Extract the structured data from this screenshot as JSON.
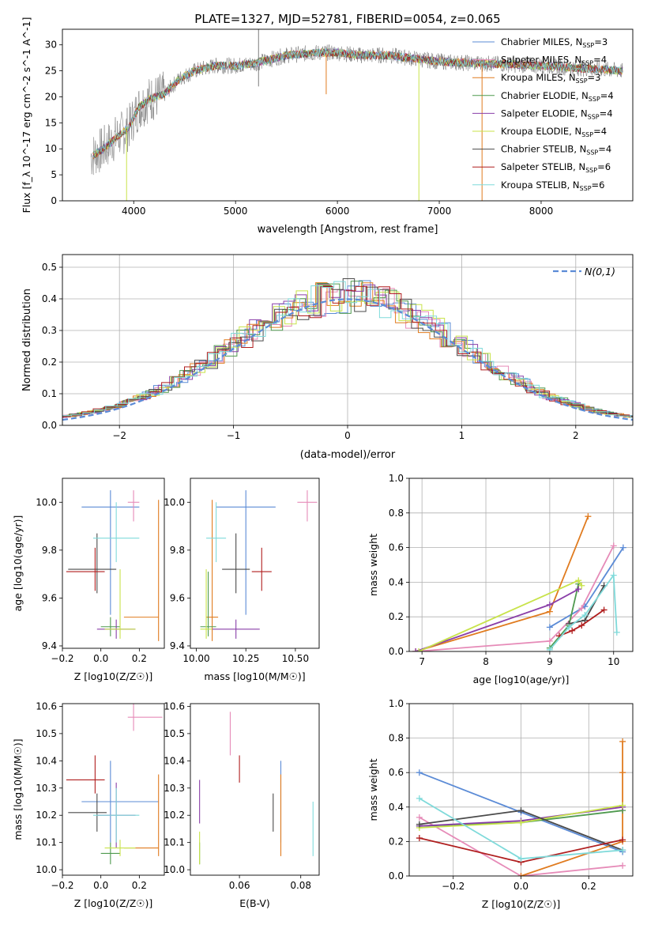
{
  "figure": {
    "title": "PLATE=1327, MJD=52781, FIBERID=0054, z=0.065"
  },
  "colors": {
    "Chabrier MILES": "#5b8bd6",
    "Salpeter MILES": "#e68bb8",
    "Kroupa MILES": "#e07b1f",
    "Chabrier ELODIE": "#4f9a4f",
    "Salpeter ELODIE": "#8a3fa8",
    "Kroupa ELODIE": "#c8e34a",
    "Chabrier STELIB": "#4a4a4a",
    "Salpeter STELIB": "#b01e1e",
    "Kroupa STELIB": "#7fdada",
    "data": "#888888",
    "normal": "#5b8bd6"
  },
  "chart_data": [
    {
      "id": "spectrum",
      "type": "line",
      "xlabel": "wavelength [Angstrom, rest frame]",
      "ylabel": "Flux [f_λ 10^-17 erg cm^-2 s^-1 A^-1]",
      "xlim": [
        3300,
        8900
      ],
      "ylim": [
        0,
        33
      ],
      "xticks": [
        4000,
        5000,
        6000,
        7000,
        8000
      ],
      "yticks": [
        0,
        5,
        10,
        15,
        20,
        25,
        30
      ],
      "continuum_x": [
        3580,
        3700,
        3850,
        3950,
        4050,
        4150,
        4300,
        4450,
        4600,
        4800,
        5000,
        5200,
        5500,
        5800,
        6000,
        6200,
        6500,
        6700,
        7000,
        7300,
        7600,
        8000,
        8400,
        8800
      ],
      "continuum_y": [
        8.5,
        10,
        12.5,
        14,
        18,
        19.5,
        20.5,
        23.5,
        25,
        26,
        26,
        26.5,
        28,
        28.5,
        28.5,
        28,
        28,
        27.5,
        26.8,
        26.5,
        26.3,
        26,
        25.5,
        25
      ],
      "legend": [
        {
          "label": "Chabrier MILES, N",
          "sub": "SSP",
          "tail": "=3"
        },
        {
          "label": "Salpeter MILES, N",
          "sub": "SSP",
          "tail": "=4"
        },
        {
          "label": "Kroupa MILES, N",
          "sub": "SSP",
          "tail": "=3"
        },
        {
          "label": "Chabrier ELODIE, N",
          "sub": "SSP",
          "tail": "=4"
        },
        {
          "label": "Salpeter ELODIE, N",
          "sub": "SSP",
          "tail": "=4"
        },
        {
          "label": "Kroupa ELODIE, N",
          "sub": "SSP",
          "tail": "=4"
        },
        {
          "label": "Chabrier STELIB, N",
          "sub": "SSP",
          "tail": "=4"
        },
        {
          "label": "Salpeter STELIB, N",
          "sub": "SSP",
          "tail": "=6"
        },
        {
          "label": "Kroupa STELIB, N",
          "sub": "SSP",
          "tail": "=6"
        }
      ]
    },
    {
      "id": "residuals",
      "type": "line",
      "xlabel": "(data-model)/error",
      "ylabel": "Normed distribution",
      "xlim": [
        -2.5,
        2.5
      ],
      "ylim": [
        0,
        0.54
      ],
      "xticks": [
        -2,
        -1,
        0,
        1,
        2
      ],
      "yticks": [
        0.0,
        0.1,
        0.2,
        0.3,
        0.4,
        0.5
      ],
      "grid": true,
      "legend": "N(0,1)",
      "hist_step": 0.1
    },
    {
      "id": "age_vs_Z",
      "type": "scatter",
      "xlabel": "Z [log10(Z/Z☉)]",
      "ylabel": "age [log10(age/yr)]",
      "xlim": [
        -0.2,
        0.33
      ],
      "ylim": [
        9.39,
        10.1
      ],
      "xticks": [
        -0.2,
        0.0,
        0.2
      ],
      "yticks": [
        9.4,
        9.6,
        9.8,
        10.0
      ],
      "points": [
        {
          "m": "Chabrier MILES",
          "x": 0.05,
          "xe": [
            0.15,
            0.15
          ],
          "y": 9.98,
          "ye": [
            0.45,
            0.07
          ]
        },
        {
          "m": "Salpeter MILES",
          "x": 0.17,
          "xe": [
            0.03,
            0.03
          ],
          "y": 10.0,
          "ye": [
            0.08,
            0.05
          ]
        },
        {
          "m": "Kroupa MILES",
          "x": 0.3,
          "xe": [
            0.18,
            0.0
          ],
          "y": 9.52,
          "ye": [
            0.1,
            0.49
          ]
        },
        {
          "m": "Chabrier ELODIE",
          "x": 0.05,
          "xe": [
            0.05,
            0.05
          ],
          "y": 9.48,
          "ye": [
            0.04,
            0.04
          ]
        },
        {
          "m": "Salpeter ELODIE",
          "x": 0.08,
          "xe": [
            0.1,
            0.1
          ],
          "y": 9.47,
          "ye": [
            0.04,
            0.04
          ]
        },
        {
          "m": "Kroupa ELODIE",
          "x": 0.1,
          "xe": [
            0.08,
            0.08
          ],
          "y": 9.47,
          "ye": [
            0.04,
            0.25
          ]
        },
        {
          "m": "Chabrier STELIB",
          "x": -0.02,
          "xe": [
            0.15,
            0.1
          ],
          "y": 9.72,
          "ye": [
            0.1,
            0.15
          ]
        },
        {
          "m": "Salpeter STELIB",
          "x": -0.03,
          "xe": [
            0.15,
            0.05
          ],
          "y": 9.71,
          "ye": [
            0.08,
            0.1
          ]
        },
        {
          "m": "Kroupa STELIB",
          "x": 0.08,
          "xe": [
            0.12,
            0.12
          ],
          "y": 9.85,
          "ye": [
            0.1,
            0.15
          ]
        }
      ]
    },
    {
      "id": "age_vs_mass",
      "type": "scatter",
      "xlabel": "mass [log10(M/M☉)]",
      "ylabel": "",
      "xlim": [
        9.97,
        10.62
      ],
      "ylim": [
        9.39,
        10.1
      ],
      "xticks": [
        10.0,
        10.25,
        10.5
      ],
      "yticks": [
        9.4,
        9.6,
        9.8,
        10.0
      ],
      "points": [
        {
          "m": "Chabrier MILES",
          "x": 10.25,
          "xe": [
            0.15,
            0.15
          ],
          "y": 9.98,
          "ye": [
            0.45,
            0.07
          ]
        },
        {
          "m": "Salpeter MILES",
          "x": 10.56,
          "xe": [
            0.05,
            0.05
          ],
          "y": 10.0,
          "ye": [
            0.08,
            0.05
          ]
        },
        {
          "m": "Kroupa MILES",
          "x": 10.08,
          "xe": [
            0.03,
            0.03
          ],
          "y": 9.52,
          "ye": [
            0.1,
            0.49
          ]
        },
        {
          "m": "Chabrier ELODIE",
          "x": 10.06,
          "xe": [
            0.04,
            0.04
          ],
          "y": 9.48,
          "ye": [
            0.04,
            0.23
          ]
        },
        {
          "m": "Salpeter ELODIE",
          "x": 10.2,
          "xe": [
            0.12,
            0.12
          ],
          "y": 9.47,
          "ye": [
            0.04,
            0.04
          ]
        },
        {
          "m": "Kroupa ELODIE",
          "x": 10.05,
          "xe": [
            0.03,
            0.03
          ],
          "y": 9.47,
          "ye": [
            0.04,
            0.25
          ]
        },
        {
          "m": "Chabrier STELIB",
          "x": 10.2,
          "xe": [
            0.07,
            0.07
          ],
          "y": 9.72,
          "ye": [
            0.1,
            0.15
          ]
        },
        {
          "m": "Salpeter STELIB",
          "x": 10.33,
          "xe": [
            0.05,
            0.05
          ],
          "y": 9.71,
          "ye": [
            0.08,
            0.1
          ]
        },
        {
          "m": "Kroupa STELIB",
          "x": 10.1,
          "xe": [
            0.05,
            0.05
          ],
          "y": 9.85,
          "ye": [
            0.1,
            0.15
          ]
        }
      ]
    },
    {
      "id": "mass_weight_vs_age",
      "type": "line",
      "xlabel": "age [log10(age/yr)]",
      "ylabel": "mass weight",
      "xlim": [
        6.8,
        10.3
      ],
      "ylim": [
        0,
        1.0
      ],
      "xticks": [
        7,
        8,
        9,
        10
      ],
      "yticks": [
        0.0,
        0.2,
        0.4,
        0.6,
        0.8,
        1.0
      ],
      "grid": true,
      "series": [
        {
          "m": "Chabrier MILES",
          "x": [
            9.0,
            9.55,
            10.15
          ],
          "y": [
            0.14,
            0.26,
            0.6
          ]
        },
        {
          "m": "Salpeter MILES",
          "x": [
            6.9,
            9.0,
            9.5,
            10.0
          ],
          "y": [
            0.0,
            0.06,
            0.25,
            0.61
          ]
        },
        {
          "m": "Kroupa MILES",
          "x": [
            6.9,
            9.0,
            9.6
          ],
          "y": [
            0.0,
            0.23,
            0.78
          ]
        },
        {
          "m": "Chabrier ELODIE",
          "x": [
            9.0,
            9.3,
            9.45
          ],
          "y": [
            0.02,
            0.15,
            0.39
          ]
        },
        {
          "m": "Salpeter ELODIE",
          "x": [
            6.9,
            9.0,
            9.45
          ],
          "y": [
            0.0,
            0.27,
            0.36
          ]
        },
        {
          "m": "Kroupa ELODIE",
          "x": [
            6.95,
            9.45,
            9.5
          ],
          "y": [
            0.0,
            0.41,
            0.38
          ]
        },
        {
          "m": "Chabrier STELIB",
          "x": [
            9.3,
            9.55,
            9.85
          ],
          "y": [
            0.16,
            0.18,
            0.38
          ]
        },
        {
          "m": "Salpeter STELIB",
          "x": [
            9.15,
            9.35,
            9.5,
            9.85
          ],
          "y": [
            0.09,
            0.12,
            0.15,
            0.24
          ]
        },
        {
          "m": "Kroupa STELIB",
          "x": [
            9.0,
            9.3,
            9.55,
            10.0,
            10.05
          ],
          "y": [
            0.01,
            0.14,
            0.21,
            0.44,
            0.11
          ]
        }
      ]
    },
    {
      "id": "mass_vs_Z",
      "type": "scatter",
      "xlabel": "Z [log10(Z/Z☉)]",
      "ylabel": "mass [log10(M/M☉)]",
      "xlim": [
        -0.2,
        0.33
      ],
      "ylim": [
        9.98,
        10.61
      ],
      "xticks": [
        -0.2,
        0.0,
        0.2
      ],
      "yticks": [
        10.0,
        10.1,
        10.2,
        10.3,
        10.4,
        10.5,
        10.6
      ],
      "points": [
        {
          "m": "Chabrier MILES",
          "x": 0.05,
          "xe": [
            0.15,
            0.25
          ],
          "y": 10.25,
          "ye": [
            0.15,
            0.15
          ]
        },
        {
          "m": "Salpeter MILES",
          "x": 0.17,
          "xe": [
            0.03,
            0.15
          ],
          "y": 10.56,
          "ye": [
            0.05,
            0.05
          ]
        },
        {
          "m": "Kroupa MILES",
          "x": 0.3,
          "xe": [
            0.18,
            0.0
          ],
          "y": 10.08,
          "ye": [
            0.03,
            0.27
          ]
        },
        {
          "m": "Chabrier ELODIE",
          "x": 0.05,
          "xe": [
            0.05,
            0.05
          ],
          "y": 10.06,
          "ye": [
            0.04,
            0.04
          ]
        },
        {
          "m": "Salpeter ELODIE",
          "x": 0.08,
          "xe": [
            0.1,
            0.1
          ],
          "y": 10.2,
          "ye": [
            0.12,
            0.12
          ]
        },
        {
          "m": "Kroupa ELODIE",
          "x": 0.1,
          "xe": [
            0.08,
            0.08
          ],
          "y": 10.08,
          "ye": [
            0.03,
            0.03
          ]
        },
        {
          "m": "Chabrier STELIB",
          "x": -0.02,
          "xe": [
            0.15,
            0.05
          ],
          "y": 10.21,
          "ye": [
            0.07,
            0.07
          ]
        },
        {
          "m": "Salpeter STELIB",
          "x": -0.03,
          "xe": [
            0.15,
            0.05
          ],
          "y": 10.33,
          "ye": [
            0.05,
            0.09
          ]
        },
        {
          "m": "Kroupa STELIB",
          "x": 0.08,
          "xe": [
            0.12,
            0.12
          ],
          "y": 10.2,
          "ye": [
            0.1,
            0.1
          ]
        }
      ]
    },
    {
      "id": "mass_vs_ebv",
      "type": "scatter",
      "xlabel": "E(B-V)",
      "ylabel": "",
      "xlim": [
        0.044,
        0.086
      ],
      "ylim": [
        9.98,
        10.61
      ],
      "xticks": [
        0.06,
        0.08
      ],
      "yticks": [
        10.0,
        10.1,
        10.2,
        10.3,
        10.4,
        10.5,
        10.6
      ],
      "points": [
        {
          "m": "Chabrier MILES",
          "x": 0.0735,
          "xe": [
            0,
            0
          ],
          "y": 10.25,
          "ye": [
            0.15,
            0.15
          ]
        },
        {
          "m": "Salpeter MILES",
          "x": 0.057,
          "xe": [
            0,
            0
          ],
          "y": 10.5,
          "ye": [
            0.08,
            0.08
          ]
        },
        {
          "m": "Kroupa MILES",
          "x": 0.0735,
          "xe": [
            0,
            0
          ],
          "y": 10.2,
          "ye": [
            0.15,
            0.15
          ]
        },
        {
          "m": "Chabrier ELODIE",
          "x": 0.047,
          "xe": [
            0,
            0
          ],
          "y": 10.06,
          "ye": [
            0.04,
            0.04
          ]
        },
        {
          "m": "Salpeter ELODIE",
          "x": 0.047,
          "xe": [
            0,
            0
          ],
          "y": 10.25,
          "ye": [
            0.08,
            0.08
          ]
        },
        {
          "m": "Kroupa ELODIE",
          "x": 0.047,
          "xe": [
            0,
            0
          ],
          "y": 10.08,
          "ye": [
            0.06,
            0.06
          ]
        },
        {
          "m": "Chabrier STELIB",
          "x": 0.071,
          "xe": [
            0,
            0
          ],
          "y": 10.21,
          "ye": [
            0.07,
            0.07
          ]
        },
        {
          "m": "Salpeter STELIB",
          "x": 0.06,
          "xe": [
            0,
            0
          ],
          "y": 10.37,
          "ye": [
            0.05,
            0.05
          ]
        },
        {
          "m": "Kroupa STELIB",
          "x": 0.084,
          "xe": [
            0,
            0
          ],
          "y": 10.15,
          "ye": [
            0.1,
            0.1
          ]
        }
      ]
    },
    {
      "id": "mass_weight_vs_Z",
      "type": "line",
      "xlabel": "Z [log10(Z/Z☉)]",
      "ylabel": "mass weight",
      "xlim": [
        -0.33,
        0.33
      ],
      "ylim": [
        0,
        1.0
      ],
      "xticks": [
        -0.2,
        0.0,
        0.2
      ],
      "yticks": [
        0.0,
        0.2,
        0.4,
        0.6,
        0.8,
        1.0
      ],
      "grid": true,
      "series": [
        {
          "m": "Chabrier MILES",
          "x": [
            -0.3,
            0.0,
            0.3
          ],
          "y": [
            0.6,
            0.37,
            0.14
          ]
        },
        {
          "m": "Salpeter MILES",
          "x": [
            -0.3,
            0.0,
            0.3
          ],
          "y": [
            0.34,
            0.0,
            0.06
          ]
        },
        {
          "m": "Kroupa MILES",
          "x": [
            0.0,
            0.3,
            0.3,
            0.3
          ],
          "y": [
            0.0,
            0.2,
            0.6,
            0.78
          ]
        },
        {
          "m": "Chabrier ELODIE",
          "x": [
            -0.3,
            0.0,
            0.3
          ],
          "y": [
            0.29,
            0.31,
            0.38
          ]
        },
        {
          "m": "Salpeter ELODIE",
          "x": [
            -0.3,
            0.0,
            0.3
          ],
          "y": [
            0.29,
            0.32,
            0.4
          ]
        },
        {
          "m": "Kroupa ELODIE",
          "x": [
            -0.3,
            0.0,
            0.3
          ],
          "y": [
            0.28,
            0.31,
            0.41
          ]
        },
        {
          "m": "Chabrier STELIB",
          "x": [
            -0.3,
            0.0,
            0.3
          ],
          "y": [
            0.3,
            0.38,
            0.15
          ]
        },
        {
          "m": "Salpeter STELIB",
          "x": [
            -0.3,
            0.0,
            0.3
          ],
          "y": [
            0.22,
            0.08,
            0.21
          ]
        },
        {
          "m": "Kroupa STELIB",
          "x": [
            -0.3,
            0.0,
            0.3
          ],
          "y": [
            0.45,
            0.1,
            0.15
          ]
        }
      ]
    }
  ]
}
